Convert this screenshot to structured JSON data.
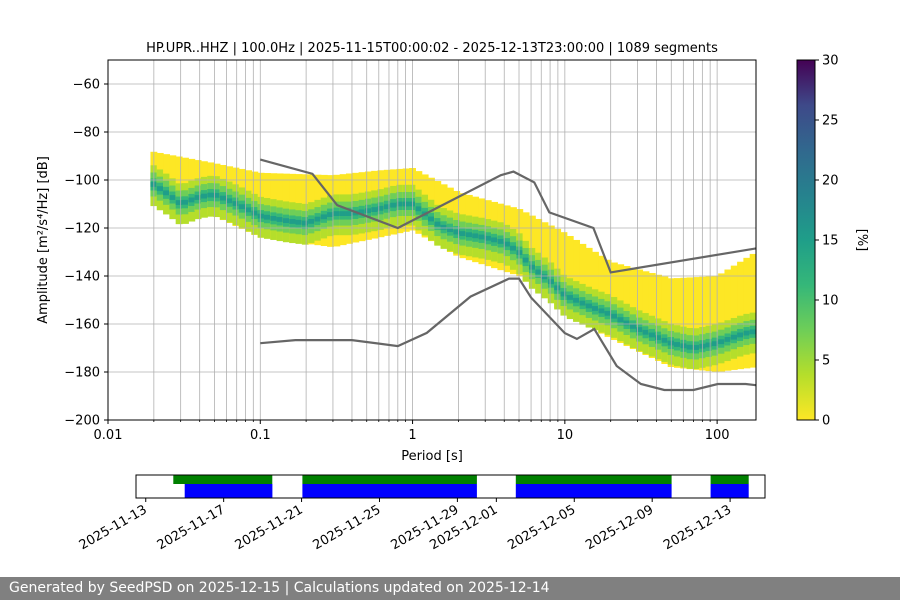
{
  "chart_data": [
    {
      "type": "heatmap",
      "title": "HP.UPR..HHZ | 100.0Hz | 2025-11-15T00:00:02 - 2025-12-13T23:00:00 | 1089 segments",
      "xlabel": "Period [s]",
      "ylabel": "Amplitude [m²/s⁴/Hz] [dB]",
      "x_scale": "log",
      "xlim": [
        0.01,
        180
      ],
      "ylim": [
        -200,
        -50
      ],
      "x_ticks": [
        0.01,
        0.1,
        1,
        10,
        100
      ],
      "x_tick_labels": [
        "0.01",
        "0.1",
        "1",
        "10",
        "100"
      ],
      "y_ticks": [
        -200,
        -180,
        -160,
        -140,
        -120,
        -100,
        -80,
        -60
      ],
      "y_tick_labels": [
        "−200",
        "−180",
        "−160",
        "−140",
        "−120",
        "−100",
        "−80",
        "−60"
      ],
      "grid": true,
      "colormap": "viridis",
      "colorbar": {
        "label": "[%]",
        "range": [
          0,
          30
        ],
        "ticks": [
          0,
          5,
          10,
          15,
          20,
          25,
          30
        ],
        "tick_labels": [
          "0",
          "5",
          "10",
          "15",
          "20",
          "25",
          "30"
        ]
      },
      "pdf_mode": {
        "x": [
          0.019,
          0.025,
          0.03,
          0.04,
          0.05,
          0.07,
          0.1,
          0.15,
          0.2,
          0.3,
          0.4,
          0.6,
          0.8,
          1.0,
          1.5,
          2,
          3,
          4,
          5,
          6,
          8,
          10,
          15,
          20,
          30,
          50,
          70,
          100,
          150,
          180
        ],
        "y": [
          -101,
          -106,
          -110,
          -107,
          -106,
          -110,
          -115,
          -117,
          -118,
          -114,
          -114,
          -112,
          -110,
          -110,
          -119,
          -122,
          -124,
          -126,
          -130,
          -136,
          -142,
          -148,
          -153,
          -156,
          -162,
          -168,
          -170,
          -168,
          -164,
          -163
        ]
      },
      "pdf_spread_db": {
        "x": [
          0.019,
          0.05,
          0.1,
          0.3,
          0.6,
          1.0,
          2,
          5,
          10,
          20,
          50,
          100,
          180
        ],
        "low": [
          -107,
          -115,
          -124,
          -128,
          -124,
          -121,
          -132,
          -140,
          -156,
          -166,
          -178,
          -180,
          -178
        ],
        "high": [
          -88,
          -93,
          -97,
          -98,
          -96,
          -95,
          -105,
          -112,
          -122,
          -134,
          -141,
          -140,
          -130
        ]
      },
      "nhnm": {
        "x": [
          0.1,
          0.22,
          0.32,
          0.8,
          3.8,
          4.6,
          6.3,
          7.9,
          15.4,
          20,
          180
        ],
        "y": [
          -91.5,
          -97.4,
          -110.5,
          -120,
          -98,
          -96.5,
          -101,
          -113.5,
          -120,
          -138.5,
          -128.5
        ]
      },
      "nlnm": {
        "x": [
          0.1,
          0.17,
          0.4,
          0.8,
          1.24,
          2.4,
          4.3,
          5.0,
          6.0,
          10,
          12,
          15.6,
          21.9,
          31.6,
          45,
          70,
          101,
          154,
          180
        ],
        "y": [
          -168,
          -166.7,
          -166.7,
          -169.2,
          -163.7,
          -148.6,
          -141.1,
          -141.1,
          -149,
          -163.8,
          -166.2,
          -162.1,
          -177.5,
          -185,
          -187.5,
          -187.5,
          -185,
          -185,
          -185.5
        ]
      }
    },
    {
      "type": "timeline",
      "x_tick_labels": [
        "2025-11-13",
        "2025-11-17",
        "2025-11-21",
        "2025-11-25",
        "2025-11-29",
        "2025-12-01",
        "2025-12-05",
        "2025-12-09",
        "2025-12-13"
      ],
      "available_data": [
        [
          "2025-11-14T10:00",
          "2025-11-19T12:00"
        ],
        [
          "2025-11-21T01:00",
          "2025-11-30T00:00"
        ],
        [
          "2025-12-02T00:00",
          "2025-12-10T00:00"
        ],
        [
          "2025-12-12T00:00",
          "2025-12-13T23:00"
        ]
      ],
      "used_data": [
        [
          "2025-11-15T00:00",
          "2025-11-19T12:00"
        ],
        [
          "2025-11-21T01:00",
          "2025-11-30T00:00"
        ],
        [
          "2025-12-02T00:00",
          "2025-12-10T00:00"
        ],
        [
          "2025-12-12T00:00",
          "2025-12-13T23:00"
        ]
      ],
      "colors": {
        "available": "#008000",
        "used": "#0000ff"
      }
    }
  ],
  "footer": {
    "text": "Generated by SeedPSD on 2025-12-15 | Calculations updated on 2025-12-14"
  }
}
